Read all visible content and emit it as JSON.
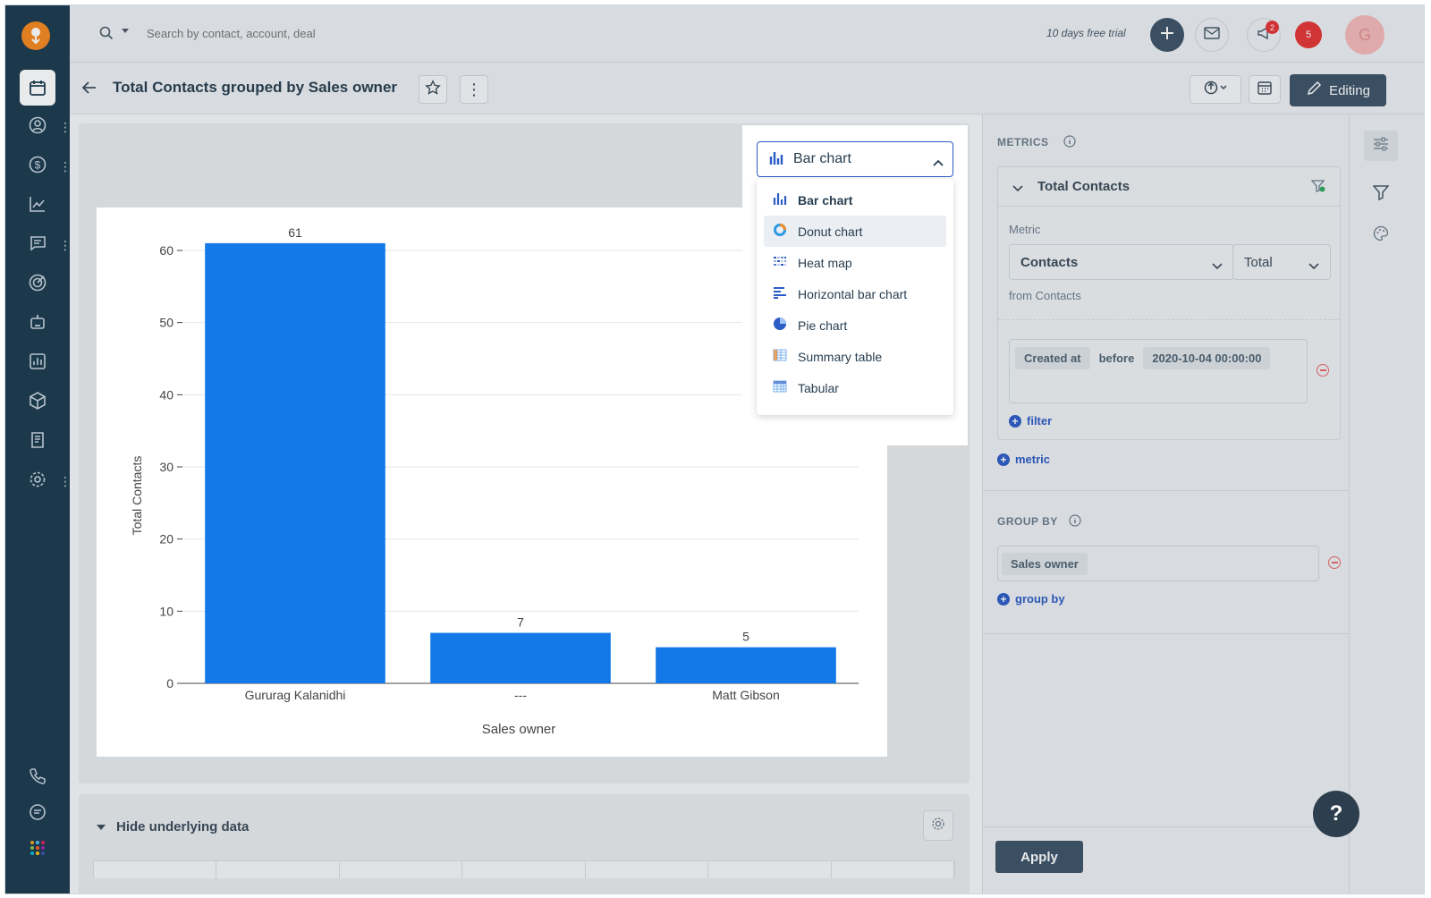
{
  "topbar": {
    "search_placeholder": "Search by contact, account, deal",
    "trial_text": "10 days free trial",
    "notification_count": "2",
    "alert_count": "5",
    "avatar_initial": "G"
  },
  "report": {
    "title": "Total Contacts grouped by Sales owner",
    "editing_label": "Editing"
  },
  "chart_type_dropdown": {
    "selected": "Bar chart",
    "options": [
      "Bar chart",
      "Donut chart",
      "Heat map",
      "Horizontal bar chart",
      "Pie chart",
      "Summary table",
      "Tabular"
    ]
  },
  "chart_data": {
    "type": "bar",
    "categories": [
      "Gururag Kalanidhi",
      "---",
      "Matt Gibson"
    ],
    "values": [
      61,
      7,
      5
    ],
    "data_labels": [
      "61",
      "7",
      "5"
    ],
    "xlabel": "Sales owner",
    "ylabel": "Total Contacts",
    "ylim": [
      0,
      60
    ],
    "yticks": [
      0,
      10,
      20,
      30,
      40,
      50,
      60
    ],
    "grid": true,
    "color": "#1378e8"
  },
  "underlying": {
    "label": "Hide underlying data"
  },
  "panel": {
    "metrics_title": "METRICS",
    "metric_card_title": "Total Contacts",
    "metric_label": "Metric",
    "metric_field": "Contacts",
    "metric_aggregate": "Total",
    "from_text": "from Contacts",
    "filter": {
      "field": "Created at",
      "operator": "before",
      "value": "2020-10-04 00:00:00"
    },
    "add_filter": "filter",
    "add_metric": "metric",
    "group_by_title": "GROUP BY",
    "group_by_value": "Sales owner",
    "add_group_by": "group by",
    "apply_label": "Apply"
  },
  "help_label": "?",
  "colors": {
    "sidebar": "#1b3a4e",
    "brand": "#f4881f",
    "accent": "#2c5cc5",
    "bar": "#1378e8"
  }
}
